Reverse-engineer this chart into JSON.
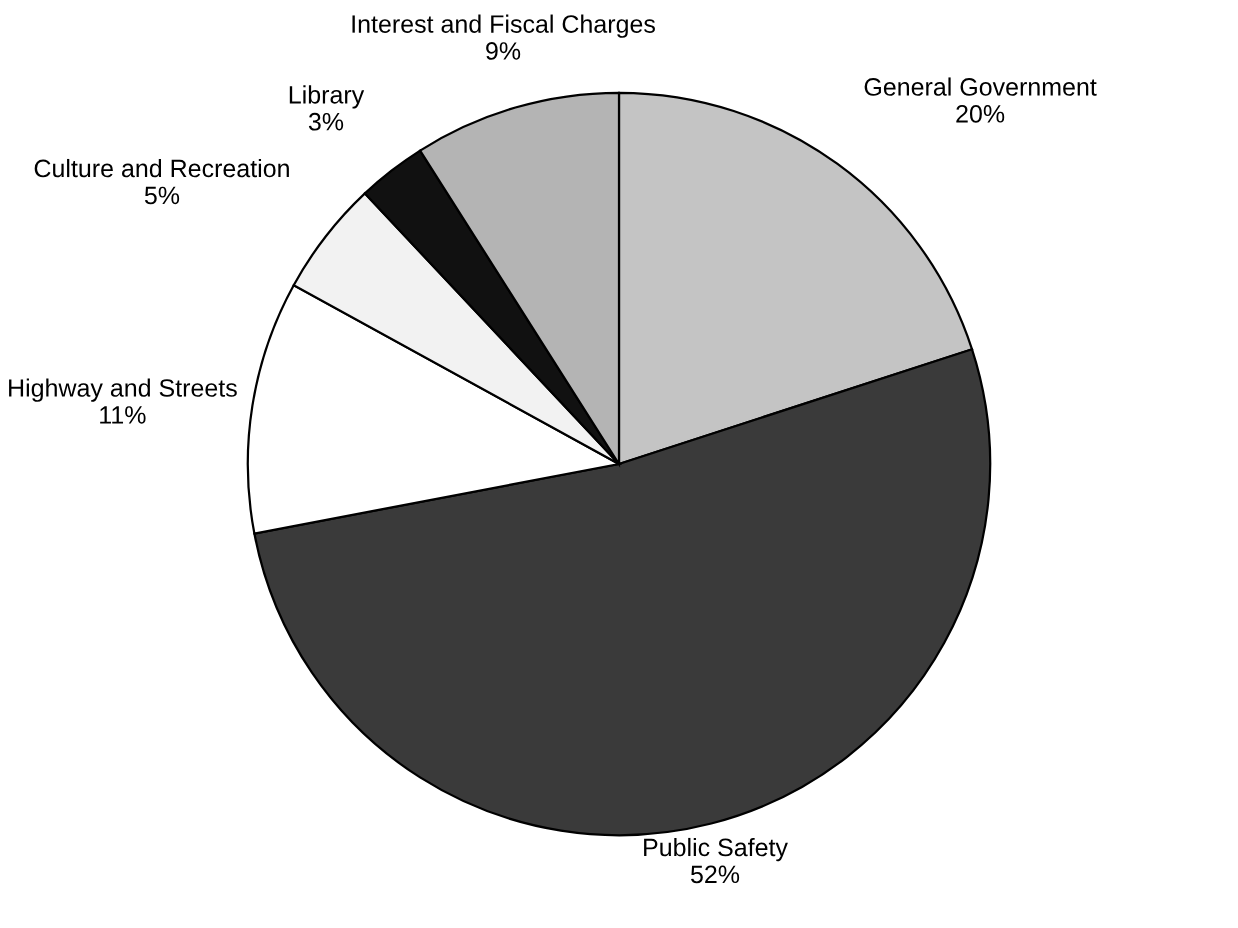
{
  "chart_data": {
    "type": "pie",
    "categories": [
      "General Government",
      "Public Safety",
      "Highway and Streets",
      "Culture and Recreation",
      "Library",
      "Interest and Fiscal Charges"
    ],
    "values": [
      20,
      52,
      11,
      5,
      3,
      9
    ],
    "value_labels": [
      "20%",
      "52%",
      "11%",
      "5%",
      "3%",
      "9%"
    ],
    "colors": [
      "#c4c4c4",
      "#3a3a3a",
      "#ffffff",
      "#f2f2f2",
      "#111111",
      "#b4b4b4"
    ],
    "legend": false
  }
}
